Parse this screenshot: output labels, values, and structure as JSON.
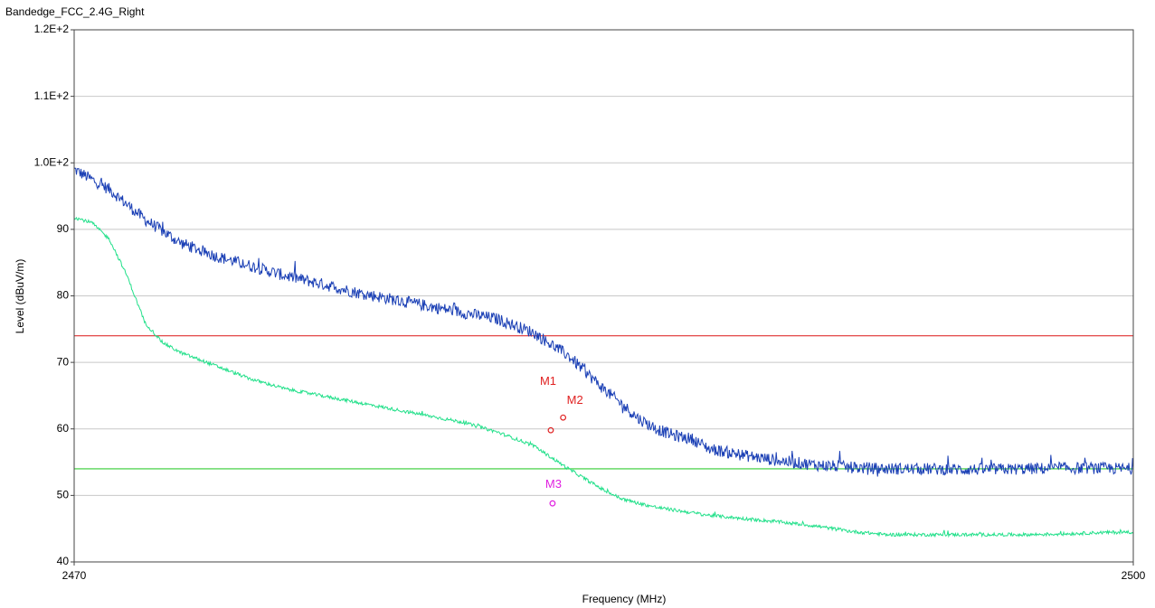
{
  "window": {
    "title": "Bandedge_FCC_2.4G_Right"
  },
  "chart_data": {
    "type": "line",
    "title": "",
    "xlabel": "Frequency (MHz)",
    "ylabel": "Level (dBuV/m)",
    "xlim": [
      2470,
      2500
    ],
    "ylim": [
      40,
      120
    ],
    "x_ticks": [
      {
        "value": 2470,
        "label": "2470"
      },
      {
        "value": 2500,
        "label": "2500"
      }
    ],
    "y_ticks": [
      {
        "value": 40,
        "label": "40"
      },
      {
        "value": 50,
        "label": "50"
      },
      {
        "value": 60,
        "label": "60"
      },
      {
        "value": 70,
        "label": "70"
      },
      {
        "value": 80,
        "label": "80"
      },
      {
        "value": 90,
        "label": "90"
      },
      {
        "value": 100,
        "label": "1.0E+2"
      },
      {
        "value": 110,
        "label": "1.1E+2"
      },
      {
        "value": 120,
        "label": "1.2E+2"
      }
    ],
    "grid": true,
    "limit_lines": [
      {
        "value": 74,
        "color": "#e03030"
      },
      {
        "value": 54,
        "color": "#33cc33"
      }
    ],
    "series": [
      {
        "color": "#1a3fb5",
        "noise": 0.9,
        "x": [
          2470,
          2471,
          2472,
          2473,
          2474,
          2475,
          2476,
          2477,
          2478,
          2479,
          2480,
          2481,
          2482,
          2483,
          2484,
          2485,
          2486,
          2486.5,
          2487,
          2487.5,
          2488,
          2489,
          2490,
          2491,
          2492,
          2493,
          2494,
          2495,
          2496,
          2497,
          2498,
          2499,
          2500
        ],
        "y": [
          99,
          96,
          91.5,
          88,
          86,
          84.5,
          83,
          81.8,
          80.5,
          79.5,
          78.5,
          77.5,
          76.5,
          74.5,
          71,
          66,
          61.5,
          60,
          59,
          58.5,
          57,
          56,
          55.2,
          54.6,
          54.2,
          54,
          54,
          53.9,
          53.9,
          54,
          54.1,
          54.1,
          54
        ]
      },
      {
        "color": "#22e08a",
        "noise": 0.25,
        "x": [
          2470,
          2470.5,
          2471,
          2471.5,
          2472,
          2472.5,
          2473,
          2474,
          2475,
          2476,
          2477,
          2478,
          2479,
          2480,
          2481,
          2482,
          2483,
          2484,
          2485,
          2485.5,
          2486,
          2486.5,
          2487,
          2488,
          2489,
          2490,
          2491,
          2492,
          2493,
          2494,
          2495,
          2496,
          2497,
          2498,
          2499,
          2500
        ],
        "y": [
          91.8,
          91,
          88.5,
          83,
          76,
          73,
          71.5,
          69.5,
          67.5,
          66,
          65,
          64,
          63,
          62,
          61,
          59.5,
          57.5,
          54,
          50.8,
          49.5,
          48.8,
          48.2,
          47.8,
          47,
          46.5,
          46,
          45.4,
          44.6,
          44.1,
          44.1,
          44.1,
          44.1,
          44.1,
          44.2,
          44.4,
          44.5
        ]
      }
    ],
    "markers": [
      {
        "label": "M1",
        "x": 2483.5,
        "y": 59.8,
        "color": "#e02020",
        "label_dx": -12,
        "label_dy": -50
      },
      {
        "label": "M2",
        "x": 2483.85,
        "y": 61.7,
        "color": "#e02020",
        "label_dx": 4,
        "label_dy": -15
      },
      {
        "label": "M3",
        "x": 2483.55,
        "y": 48.8,
        "color": "#e020e0",
        "label_dx": -8,
        "label_dy": -17
      }
    ]
  }
}
